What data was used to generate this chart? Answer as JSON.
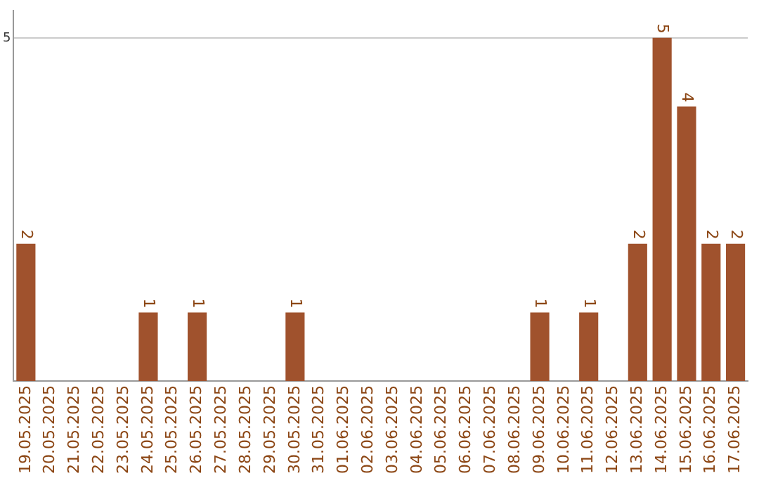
{
  "chart_data": {
    "type": "bar",
    "categories": [
      "19.05.2025",
      "20.05.2025",
      "21.05.2025",
      "22.05.2025",
      "23.05.2025",
      "24.05.2025",
      "25.05.2025",
      "26.05.2025",
      "27.05.2025",
      "28.05.2025",
      "29.05.2025",
      "30.05.2025",
      "31.05.2025",
      "01.06.2025",
      "02.06.2025",
      "03.06.2025",
      "04.06.2025",
      "05.06.2025",
      "06.06.2025",
      "07.06.2025",
      "08.06.2025",
      "09.06.2025",
      "10.06.2025",
      "11.06.2025",
      "12.06.2025",
      "13.06.2025",
      "14.06.2025",
      "15.06.2025",
      "16.06.2025",
      "17.06.2025"
    ],
    "values": [
      2,
      0,
      0,
      0,
      0,
      1,
      0,
      1,
      0,
      0,
      0,
      1,
      0,
      0,
      0,
      0,
      0,
      0,
      0,
      0,
      0,
      1,
      0,
      1,
      0,
      2,
      5,
      4,
      2,
      2
    ],
    "value_labels": [
      "2",
      null,
      null,
      null,
      null,
      "1",
      null,
      "1",
      null,
      null,
      null,
      "1",
      null,
      null,
      null,
      null,
      null,
      null,
      null,
      null,
      null,
      "1",
      null,
      "1",
      null,
      "2",
      "5",
      "4",
      "2",
      "2"
    ],
    "color": "#a0522d",
    "ylim": [
      0,
      5.4
    ],
    "yticks": [
      5
    ],
    "grid": "y",
    "legend": false
  }
}
